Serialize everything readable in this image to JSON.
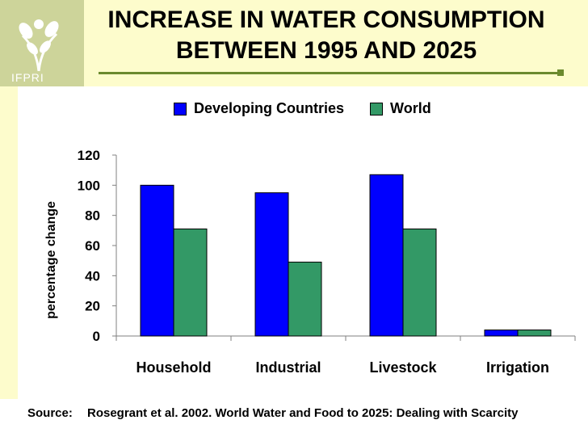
{
  "slide": {
    "title_line1": "INCREASE IN WATER CONSUMPTION",
    "title_line2": "BETWEEN 1995 AND 2025",
    "logo_text": "IFPRI",
    "source_label": "Source:",
    "source_text": "Rosegrant et al. 2002. World Water and Food to 2025: Dealing with Scarcity"
  },
  "colors": {
    "developing": "#0000ff",
    "world": "#339966",
    "header_bg": "#fdfccc",
    "logo_bg": "#cdd49a",
    "accent_rule": "#6b8a2e"
  },
  "chart_data": {
    "type": "bar",
    "title": "",
    "xlabel": "",
    "ylabel": "percentage change",
    "ylim": [
      0,
      120
    ],
    "yticks": [
      0,
      20,
      40,
      60,
      80,
      100,
      120
    ],
    "categories": [
      "Household",
      "Industrial",
      "Livestock",
      "Irrigation"
    ],
    "series": [
      {
        "name": "Developing Countries",
        "color": "#0000ff",
        "values": [
          100,
          95,
          107,
          4
        ]
      },
      {
        "name": "World",
        "color": "#339966",
        "values": [
          71,
          49,
          71,
          4
        ]
      }
    ],
    "legend": "top"
  }
}
